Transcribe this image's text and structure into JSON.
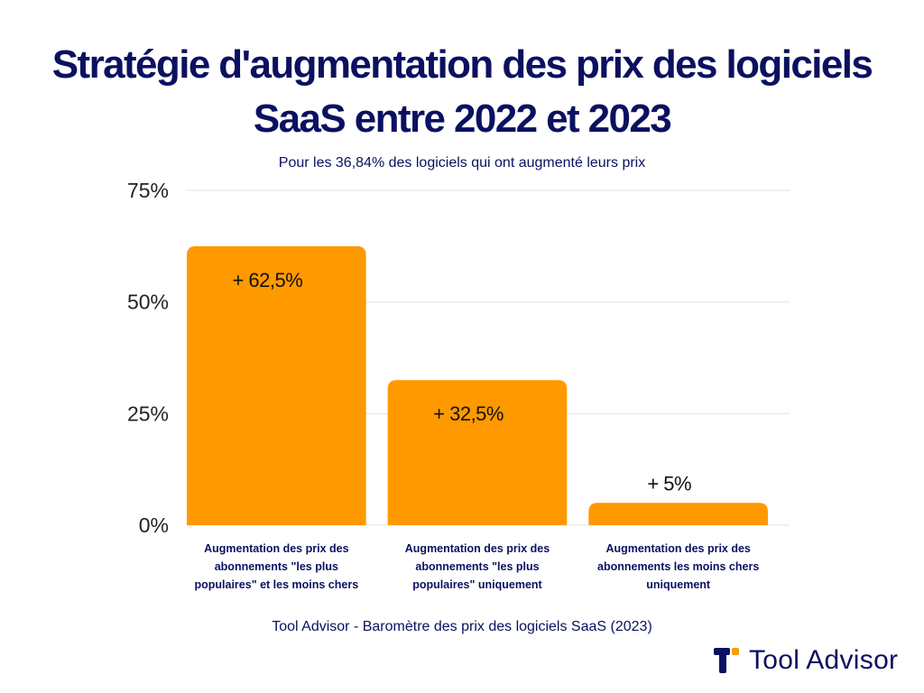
{
  "header": {
    "title_line1": "Stratégie d'augmentation des prix des logiciels",
    "title_line2": "SaaS entre 2022 et 2023",
    "subtitle": "Pour les 36,84% des logiciels qui ont augmenté leurs prix"
  },
  "chart_data": {
    "type": "bar",
    "categories": [
      [
        "Augmentation des prix des",
        "abonnements \"les plus",
        "populaires\" et les moins chers"
      ],
      [
        "Augmentation des prix des",
        "abonnements \"les plus",
        "populaires\" uniquement"
      ],
      [
        "Augmentation des prix des",
        "abonnements les moins chers",
        "uniquement"
      ]
    ],
    "values": [
      62.5,
      32.5,
      5
    ],
    "data_labels": [
      "+ 62,5%",
      "+ 32,5%",
      "+ 5%"
    ],
    "ylim": [
      0,
      75
    ],
    "yticks": [
      0,
      25,
      50,
      75
    ],
    "ytick_labels": [
      "0%",
      "25%",
      "50%",
      "75%"
    ],
    "grid": true,
    "colors": {
      "bar": "#ff9900",
      "grid": "#e3e3e3",
      "text": "#0b1160",
      "tick": "#222222"
    }
  },
  "footer": {
    "source": "Tool Advisor - Baromètre des prix des logiciels SaaS (2023)",
    "brand_name": "Tool Advisor",
    "logo_icon": "tool-advisor-logo-icon"
  }
}
